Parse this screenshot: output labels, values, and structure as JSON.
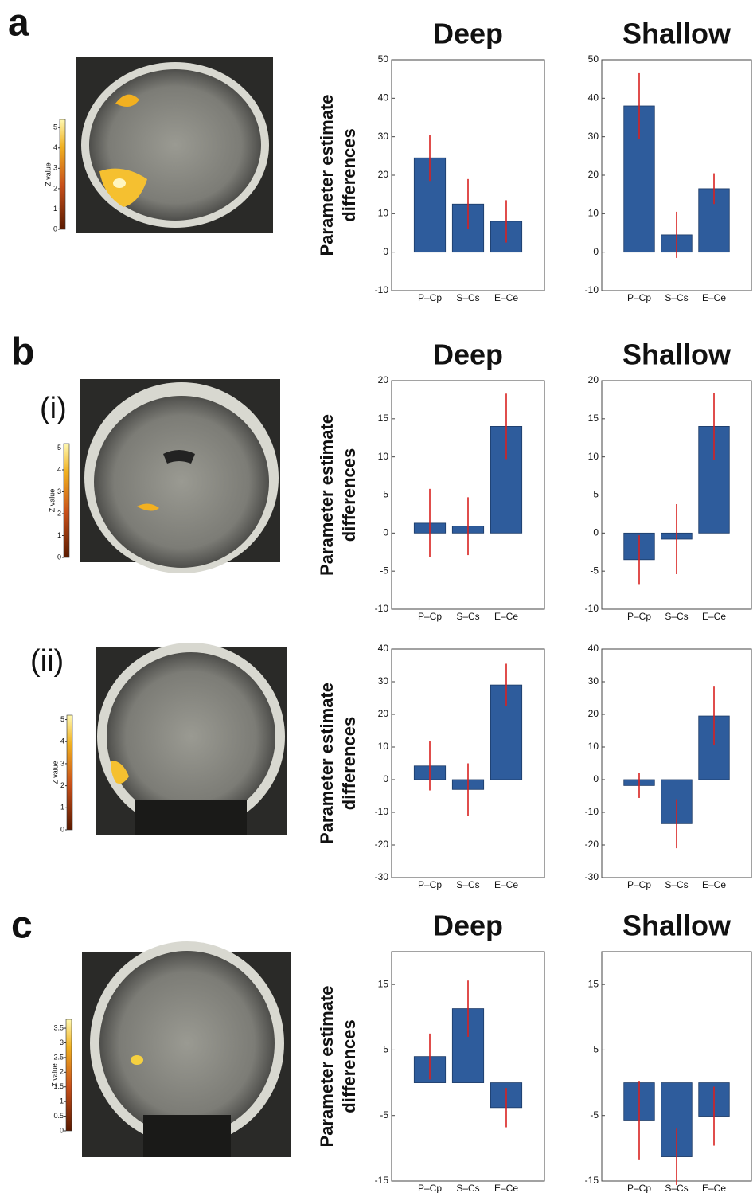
{
  "panel_labels": [
    "a",
    "b",
    "(i)",
    "(ii)",
    "c"
  ],
  "chart_data": [
    {
      "type": "colorbar",
      "ylabel": "Z value",
      "ylim": [
        0,
        5.4
      ],
      "yticks": [
        0,
        1,
        2,
        3,
        4,
        5
      ]
    },
    {
      "type": "bar",
      "title": "Deep",
      "ylabel": [
        "Parameter estimate",
        "differences"
      ],
      "categories": [
        "P–Cp",
        "S–Cs",
        "E–Ce"
      ],
      "values": [
        24.5,
        12.5,
        8
      ],
      "errors": [
        6,
        6.5,
        5.5
      ],
      "color": "#2e5c9c",
      "error_color": "#d8211f",
      "ylim": [
        -10,
        50
      ],
      "yticks": [
        -10,
        0,
        10,
        20,
        30,
        40,
        50
      ]
    },
    {
      "type": "bar",
      "title": "Shallow",
      "categories": [
        "P–Cp",
        "S–Cs",
        "E–Ce"
      ],
      "values": [
        38,
        4.5,
        16.5
      ],
      "errors": [
        8.5,
        6,
        4
      ],
      "color": "#2e5c9c",
      "error_color": "#d8211f",
      "ylim": [
        -10,
        50
      ],
      "yticks": [
        -10,
        0,
        10,
        20,
        30,
        40,
        50
      ]
    },
    {
      "type": "colorbar",
      "ylabel": "Z value",
      "ylim": [
        0,
        5.2
      ],
      "yticks": [
        0,
        1,
        2,
        3,
        4,
        5
      ]
    },
    {
      "type": "bar",
      "title": "Deep",
      "ylabel": [
        "Parameter estimate",
        "differences"
      ],
      "categories": [
        "P–Cp",
        "S–Cs",
        "E–Ce"
      ],
      "values": [
        1.3,
        0.9,
        14
      ],
      "errors": [
        4.5,
        3.8,
        4.3
      ],
      "color": "#2e5c9c",
      "error_color": "#d8211f",
      "ylim": [
        -10,
        20
      ],
      "yticks": [
        -10,
        -5,
        0,
        5,
        10,
        15,
        20
      ]
    },
    {
      "type": "bar",
      "title": "Shallow",
      "categories": [
        "P–Cp",
        "S–Cs",
        "E–Ce"
      ],
      "values": [
        -3.5,
        -0.8,
        14
      ],
      "errors": [
        3.2,
        4.6,
        4.4
      ],
      "color": "#2e5c9c",
      "error_color": "#d8211f",
      "ylim": [
        -10,
        20
      ],
      "yticks": [
        -10,
        -5,
        0,
        5,
        10,
        15,
        20
      ]
    },
    {
      "type": "colorbar",
      "ylabel": "Z value",
      "ylim": [
        0,
        5.2
      ],
      "yticks": [
        0,
        1,
        2,
        3,
        4,
        5
      ]
    },
    {
      "type": "bar",
      "ylabel": [
        "Parameter estimate",
        "differences"
      ],
      "categories": [
        "P–Cp",
        "S–Cs",
        "E–Ce"
      ],
      "values": [
        4.2,
        -3,
        29
      ],
      "errors": [
        7.5,
        8,
        6.5
      ],
      "color": "#2e5c9c",
      "error_color": "#d8211f",
      "ylim": [
        -30,
        40
      ],
      "yticks": [
        -30,
        -20,
        -10,
        0,
        10,
        20,
        30,
        40
      ]
    },
    {
      "type": "bar",
      "categories": [
        "P–Cp",
        "S–Cs",
        "E–Ce"
      ],
      "values": [
        -1.8,
        -13.5,
        19.5
      ],
      "errors": [
        3.8,
        7.5,
        9
      ],
      "color": "#2e5c9c",
      "error_color": "#d8211f",
      "ylim": [
        -30,
        40
      ],
      "yticks": [
        -30,
        -20,
        -10,
        0,
        10,
        20,
        30,
        40
      ]
    },
    {
      "type": "colorbar",
      "ylabel": "Z value",
      "ylim": [
        0,
        3.8
      ],
      "yticks": [
        0,
        0.5,
        1,
        1.5,
        2,
        2.5,
        3,
        3.5
      ]
    },
    {
      "type": "bar",
      "title": "Deep",
      "ylabel": [
        "Parameter estimate",
        "differences"
      ],
      "categories": [
        "P–Cp",
        "S–Cs",
        "E–Ce"
      ],
      "values": [
        4,
        11.3,
        -3.8
      ],
      "errors": [
        3.5,
        4.3,
        3
      ],
      "color": "#2e5c9c",
      "error_color": "#d8211f",
      "ylim": [
        -15,
        20
      ],
      "yticks": [
        -15,
        -5,
        5,
        15
      ]
    },
    {
      "type": "bar",
      "title": "Shallow",
      "categories": [
        "P–Cp",
        "S–Cs",
        "E–Ce"
      ],
      "values": [
        -5.7,
        -11.3,
        -5.1
      ],
      "errors": [
        6,
        4.3,
        4.5
      ],
      "color": "#2e5c9c",
      "error_color": "#d8211f",
      "ylim": [
        -15,
        20
      ],
      "yticks": [
        -15,
        -5,
        5,
        15
      ]
    }
  ]
}
